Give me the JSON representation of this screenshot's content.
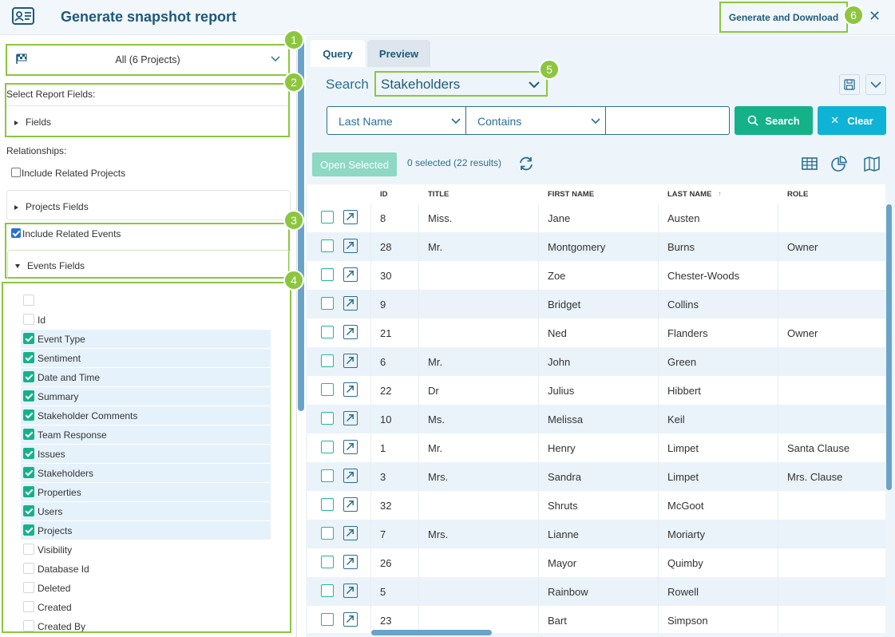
{
  "header": {
    "title": "Generate snapshot report",
    "generate_label": "Generate and Download",
    "close_glyph": "✕"
  },
  "callouts": [
    "1",
    "2",
    "3",
    "4",
    "5",
    "6"
  ],
  "left": {
    "project_select": "All (6 Projects)",
    "select_report_fields": "Select Report Fields:",
    "fields_label": "Fields",
    "relationships_label": "Relationships:",
    "include_projects_label": "Include Related Projects",
    "include_projects_checked": false,
    "projects_fields_label": "Projects Fields",
    "include_events_label": "Include Related Events",
    "include_events_checked": true,
    "events_fields_label": "Events Fields",
    "event_fields": [
      {
        "label": "",
        "checked": false
      },
      {
        "label": "Id",
        "checked": false
      },
      {
        "label": "Event Type",
        "checked": true
      },
      {
        "label": "Sentiment",
        "checked": true
      },
      {
        "label": "Date and Time",
        "checked": true
      },
      {
        "label": "Summary",
        "checked": true
      },
      {
        "label": "Stakeholder Comments",
        "checked": true
      },
      {
        "label": "Team Response",
        "checked": true
      },
      {
        "label": "Issues",
        "checked": true
      },
      {
        "label": "Stakeholders",
        "checked": true
      },
      {
        "label": "Properties",
        "checked": true
      },
      {
        "label": "Users",
        "checked": true
      },
      {
        "label": "Projects",
        "checked": true
      },
      {
        "label": "Visibility",
        "checked": false
      },
      {
        "label": "Database Id",
        "checked": false
      },
      {
        "label": "Deleted",
        "checked": false
      },
      {
        "label": "Created",
        "checked": false
      },
      {
        "label": "Created By",
        "checked": false
      }
    ]
  },
  "right": {
    "tabs": [
      {
        "label": "Query",
        "active": true
      },
      {
        "label": "Preview",
        "active": false
      }
    ],
    "search_label": "Search",
    "entity": "Stakeholders",
    "filter_field": "Last Name",
    "filter_op": "Contains",
    "filter_value": "",
    "search_button": "Search",
    "clear_button": "Clear",
    "open_selected": "Open Selected",
    "selection_status": "0 selected (22 results)",
    "columns": [
      "ID",
      "TITLE",
      "FIRST NAME",
      "LAST NAME",
      "ROLE"
    ],
    "sort_indicator": "↑",
    "rows": [
      {
        "id": "8",
        "title": "Miss.",
        "first": "Jane",
        "last": "Austen",
        "role": ""
      },
      {
        "id": "28",
        "title": "Mr.",
        "first": "Montgomery",
        "last": "Burns",
        "role": "Owner"
      },
      {
        "id": "30",
        "title": "",
        "first": "Zoe",
        "last": "Chester-Woods",
        "role": ""
      },
      {
        "id": "9",
        "title": "",
        "first": "Bridget",
        "last": "Collins",
        "role": ""
      },
      {
        "id": "21",
        "title": "",
        "first": "Ned",
        "last": "Flanders",
        "role": "Owner"
      },
      {
        "id": "6",
        "title": "Mr.",
        "first": "John",
        "last": "Green",
        "role": ""
      },
      {
        "id": "22",
        "title": "Dr",
        "first": "Julius",
        "last": "Hibbert",
        "role": ""
      },
      {
        "id": "10",
        "title": "Ms.",
        "first": "Melissa",
        "last": "Keil",
        "role": ""
      },
      {
        "id": "1",
        "title": "Mr.",
        "first": "Henry",
        "last": "Limpet",
        "role": "Santa Clause"
      },
      {
        "id": "3",
        "title": "Mrs.",
        "first": "Sandra",
        "last": "Limpet",
        "role": "Mrs. Clause"
      },
      {
        "id": "32",
        "title": "",
        "first": "Shruts",
        "last": "McGoot",
        "role": ""
      },
      {
        "id": "7",
        "title": "Mrs.",
        "first": "Lianne",
        "last": "Moriarty",
        "role": ""
      },
      {
        "id": "26",
        "title": "",
        "first": "Mayor",
        "last": "Quimby",
        "role": ""
      },
      {
        "id": "5",
        "title": "",
        "first": "Rainbow",
        "last": "Rowell",
        "role": ""
      },
      {
        "id": "23",
        "title": "",
        "first": "Bart",
        "last": "Simpson",
        "role": ""
      }
    ]
  },
  "colors": {
    "brand": "#1e5a7a",
    "accent_green": "#8cc63f",
    "teal": "#15b28a",
    "cyan": "#0fb3d5"
  }
}
